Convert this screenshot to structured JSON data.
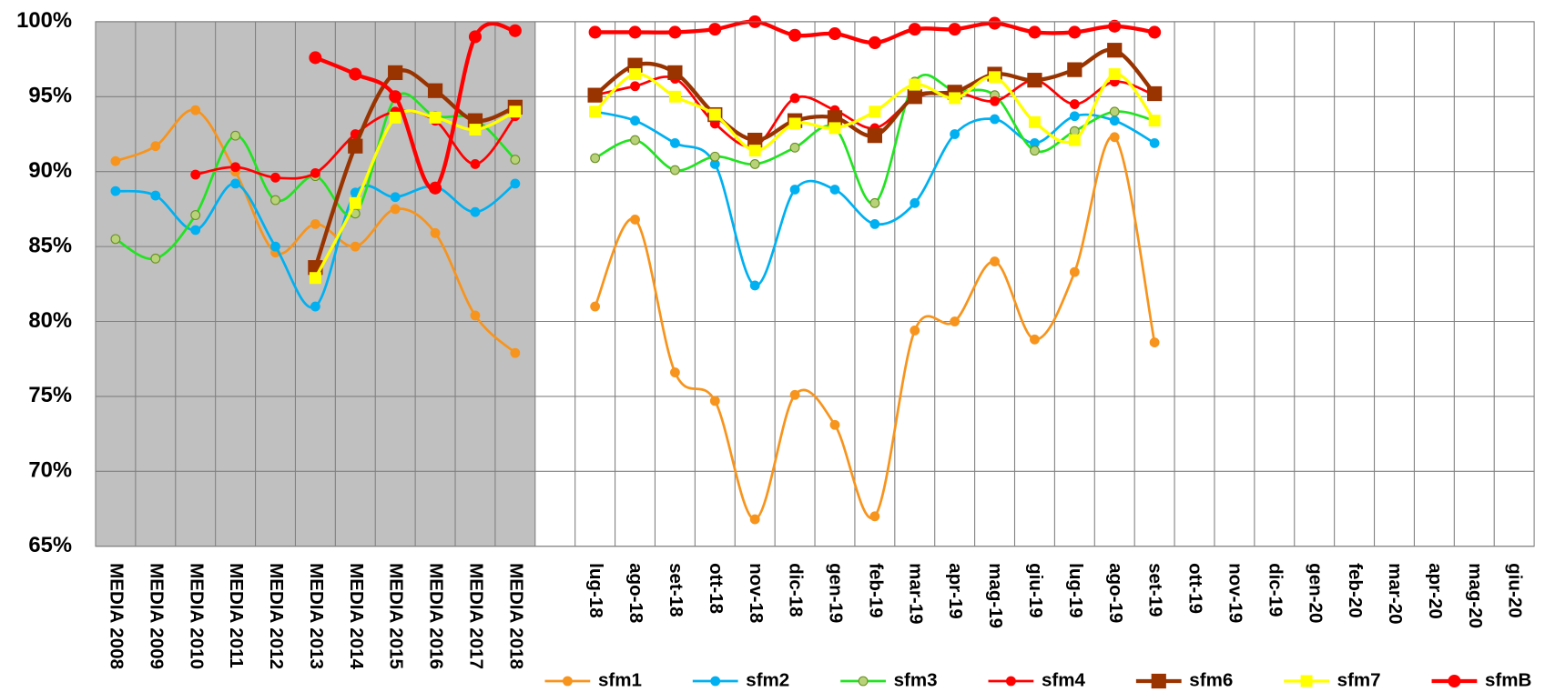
{
  "chart_data": {
    "type": "line",
    "categories": [
      "MEDIA 2008",
      "MEDIA 2009",
      "MEDIA 2010",
      "MEDIA 2011",
      "MEDIA 2012",
      "MEDIA 2013",
      "MEDIA 2014",
      "MEDIA 2015",
      "MEDIA 2016",
      "MEDIA 2017",
      "MEDIA 2018",
      null,
      "lug-18",
      "ago-18",
      "set-18",
      "ott-18",
      "nov-18",
      "dic-18",
      "gen-19",
      "feb-19",
      "mar-19",
      "apr-19",
      "mag-19",
      "giu-19",
      "lug-19",
      "ago-19",
      "set-19",
      "ott-19",
      "nov-19",
      "dic-19",
      "gen-20",
      "feb-20",
      "mar-20",
      "apr-20",
      "mag-20",
      "giu-20"
    ],
    "ylim": [
      65,
      100
    ],
    "yticks": [
      {
        "value": 65,
        "label": "65%"
      },
      {
        "value": 70,
        "label": "70%"
      },
      {
        "value": 75,
        "label": "75%"
      },
      {
        "value": 80,
        "label": "80%"
      },
      {
        "value": 85,
        "label": "85%"
      },
      {
        "value": 90,
        "label": "90%"
      },
      {
        "value": 95,
        "label": "95%"
      },
      {
        "value": 100,
        "label": "100%"
      }
    ],
    "grid": true,
    "smooth": true,
    "legend": "bottom",
    "series": [
      {
        "name": "sfm1",
        "color": "#f7941d",
        "marker": "circle",
        "width": 2.5,
        "values": [
          90.7,
          91.7,
          94.1,
          90.0,
          84.6,
          86.5,
          85.0,
          87.5,
          85.9,
          80.4,
          77.9,
          null,
          81.0,
          86.8,
          76.6,
          74.7,
          66.8,
          75.1,
          73.1,
          67.0,
          79.4,
          80.0,
          84.0,
          78.8,
          83.3,
          92.3,
          78.6,
          null,
          null,
          null,
          null,
          null,
          null,
          null,
          null,
          null
        ]
      },
      {
        "name": "sfm2",
        "color": "#00b0f0",
        "marker": "circle",
        "width": 2.5,
        "values": [
          88.7,
          88.4,
          86.1,
          89.2,
          85.0,
          81.0,
          88.6,
          88.3,
          89.0,
          87.3,
          89.2,
          null,
          94.0,
          93.4,
          91.9,
          90.5,
          82.4,
          88.8,
          88.8,
          86.5,
          87.9,
          92.5,
          93.5,
          91.9,
          93.7,
          93.4,
          91.9,
          null,
          null,
          null,
          null,
          null,
          null,
          null,
          null,
          null
        ]
      },
      {
        "name": "sfm3",
        "color": "#22e322",
        "marker": "circle",
        "marker_fill": "#b8d27a",
        "marker_stroke": "#6b8e23",
        "width": 2.5,
        "values": [
          85.5,
          84.2,
          87.1,
          92.4,
          88.1,
          89.7,
          87.2,
          94.9,
          93.7,
          93.5,
          90.8,
          null,
          90.9,
          92.1,
          90.1,
          91.0,
          90.5,
          91.6,
          92.9,
          87.9,
          96.0,
          95.4,
          95.1,
          91.4,
          92.7,
          94.0,
          93.4,
          null,
          null,
          null,
          null,
          null,
          null,
          null,
          null,
          null
        ]
      },
      {
        "name": "sfm4",
        "color": "#ff0000",
        "marker": "circle",
        "width": 2.5,
        "values": [
          null,
          null,
          89.8,
          90.3,
          89.6,
          89.9,
          92.5,
          94.0,
          93.4,
          90.5,
          93.7,
          null,
          95.1,
          95.7,
          96.2,
          93.2,
          91.7,
          94.9,
          94.1,
          92.9,
          94.9,
          95.3,
          94.7,
          96.1,
          94.5,
          96.0,
          95.1,
          null,
          null,
          null,
          null,
          null,
          null,
          null,
          null,
          null
        ]
      },
      {
        "name": "sfm6",
        "color": "#993300",
        "marker": "square",
        "width": 4,
        "values": [
          null,
          null,
          null,
          null,
          null,
          83.6,
          91.7,
          96.6,
          95.4,
          93.4,
          94.3,
          null,
          95.1,
          97.1,
          96.6,
          93.8,
          92.1,
          93.4,
          93.6,
          92.4,
          95.0,
          95.3,
          96.5,
          96.1,
          96.8,
          98.1,
          95.2,
          null,
          null,
          null,
          null,
          null,
          null,
          null,
          null,
          null
        ]
      },
      {
        "name": "sfm7",
        "color": "#ffff00",
        "marker": "square",
        "width": 3,
        "values": [
          null,
          null,
          null,
          null,
          null,
          82.9,
          87.9,
          93.6,
          93.6,
          92.8,
          94.0,
          null,
          94.0,
          96.5,
          95.0,
          93.8,
          91.4,
          93.2,
          92.9,
          94.0,
          95.8,
          94.9,
          96.3,
          93.3,
          92.1,
          96.5,
          93.4,
          null,
          null,
          null,
          null,
          null,
          null,
          null,
          null,
          null
        ]
      },
      {
        "name": "sfmB",
        "color": "#ff0000",
        "marker": "circle",
        "width": 4,
        "values": [
          null,
          null,
          null,
          null,
          null,
          97.6,
          96.5,
          95.0,
          88.9,
          99.0,
          99.4,
          null,
          99.3,
          99.3,
          99.3,
          99.5,
          100.0,
          99.1,
          99.2,
          98.6,
          99.5,
          99.5,
          99.9,
          99.3,
          99.3,
          99.7,
          99.3,
          null,
          null,
          null,
          null,
          null,
          null,
          null,
          null,
          null
        ]
      }
    ]
  }
}
